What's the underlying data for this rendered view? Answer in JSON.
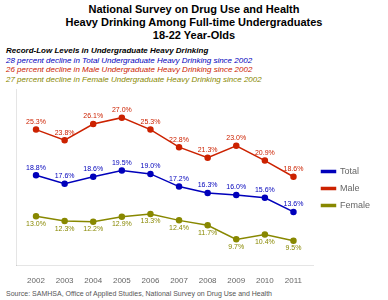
{
  "chart_data": {
    "type": "line",
    "title": "National Survey on Drug Use and Health\nHeavy Drinking Among Full-time Undergraduates\n18-22 Year-Olds",
    "subtitle": [
      {
        "text": "Record-Low Levels in Undergraduate Heavy Drinking",
        "color": "#000000"
      },
      {
        "text": "28 percent decline in Total Undergraduate Heavy Drinking since 2002",
        "color": "#0000bb"
      },
      {
        "text": "26 percent decline in Male Undergraduate Heavy Drinking since 2002",
        "color": "#cc2200"
      },
      {
        "text": "27 percent decline in Female Undergraduate Heavy Drinking since 2002",
        "color": "#888800"
      }
    ],
    "annotations": [
      {
        "text": "Source:  SAMHSA, Office of Applied Studies, National Survey on Drug Use and Health",
        "color": "#555555"
      }
    ],
    "x": [
      2002,
      2003,
      2004,
      2005,
      2006,
      2007,
      2008,
      2009,
      2010,
      2011
    ],
    "xlim": [
      2001.3,
      2011.7
    ],
    "xticks": [
      2002,
      2003,
      2004,
      2005,
      2006,
      2007,
      2008,
      2009,
      2010,
      2011
    ],
    "ylim": [
      6,
      31
    ],
    "yticks": [],
    "grid": false,
    "legend": "right",
    "tick_labels": "x",
    "data_labels": true,
    "marker": "circle",
    "series": [
      {
        "name": "Total",
        "color": "#0000bb",
        "values": [
          18.8,
          17.6,
          18.6,
          19.5,
          19.0,
          17.2,
          16.3,
          16.0,
          15.6,
          13.6
        ],
        "value_labels": [
          "18.8%",
          "17.6%",
          "18.6%",
          "19.5%",
          "19.0%",
          "17.2%",
          "16.3%",
          "16.0%",
          "15.6%",
          "13.6%"
        ]
      },
      {
        "name": "Male",
        "color": "#cc2200",
        "values": [
          25.3,
          23.8,
          26.1,
          27.0,
          25.3,
          22.8,
          21.3,
          23.0,
          20.9,
          18.6
        ],
        "value_labels": [
          "25.3%",
          "23.8%",
          "26.1%",
          "27.0%",
          "25.3%",
          "22.8%",
          "21.3%",
          "23.0%",
          "20.9%",
          "18.6%"
        ]
      },
      {
        "name": "Female",
        "color": "#888800",
        "values": [
          13.0,
          12.3,
          12.2,
          12.9,
          13.3,
          12.4,
          11.7,
          9.7,
          10.4,
          9.5
        ],
        "value_labels": [
          "13.0%",
          "12.3%",
          "12.2%",
          "12.9%",
          "13.3%",
          "12.4%",
          "11.7%",
          "9.7%",
          "10.4%",
          "9.5%"
        ]
      }
    ]
  }
}
